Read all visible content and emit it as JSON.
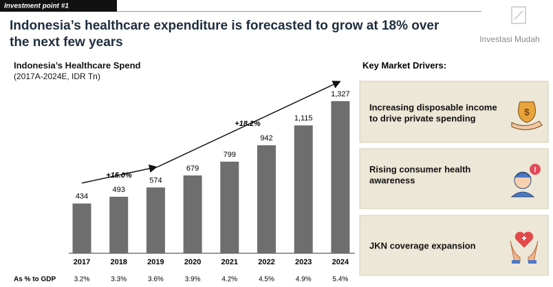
{
  "tag": "Investment point #1",
  "title_lines": [
    "Indonesia’s healthcare expenditure is forecasted to grow at 18% over",
    "the next few years"
  ],
  "logo": "Investasi Mudah",
  "drivers_title": "Key Market Drivers:",
  "drivers": [
    [
      "Increasing disposable income",
      "to drive private spending"
    ],
    [
      "Rising consumer health",
      "awareness"
    ],
    [
      "JKN coverage expansion"
    ]
  ],
  "chart_data": {
    "type": "bar",
    "title": "Indonesia’s Healthcare Spend",
    "subtitle": "(2017A-2024E, IDR Tn)",
    "categories": [
      "2017",
      "2018",
      "2019",
      "2020",
      "2021",
      "2022",
      "2023",
      "2024"
    ],
    "values": [
      434,
      493,
      574,
      679,
      799,
      942,
      1115,
      1327
    ],
    "value_labels": [
      "434",
      "493",
      "574",
      "679",
      "799",
      "942",
      "1,115",
      "1,327"
    ],
    "color": "#6e6e6e",
    "annotations": [
      "+15.0%",
      "+18.2%"
    ],
    "gdp_label": "As % to GDP",
    "gdp_share": [
      "3.2%",
      "3.3%",
      "3.6%",
      "3.9%",
      "4.2%",
      "4.5%",
      "4.9%",
      "5.4%"
    ]
  }
}
